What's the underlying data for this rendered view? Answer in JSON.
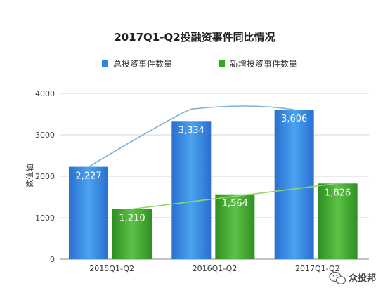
{
  "chart_data": {
    "type": "bar",
    "title": "2017Q1-Q2投融资事件同比情况",
    "ylabel": "数值轴",
    "xlabel": "",
    "ylim": [
      0,
      4000
    ],
    "yticks": [
      0,
      1000,
      2000,
      3000,
      4000
    ],
    "categories": [
      "2015Q1-Q2",
      "2016Q1-Q2",
      "2017Q1-Q2"
    ],
    "series": [
      {
        "name": "总投资事件数量",
        "values": [
          2227,
          3334,
          3606
        ],
        "labels": [
          "2,227",
          "3,334",
          "3,606"
        ],
        "color": "#2f86e0"
      },
      {
        "name": "新增投资事件数量",
        "values": [
          1210,
          1564,
          1826
        ],
        "labels": [
          "1,210",
          "1,564",
          "1,826"
        ],
        "color": "#3aa52a"
      }
    ],
    "trendlines": true,
    "trend_colors": [
      "#7fb2d6",
      "#8ed66a"
    ],
    "legend": "top",
    "grid": true
  },
  "watermark": {
    "text": "众投邦",
    "icon": "wechat-icon"
  }
}
